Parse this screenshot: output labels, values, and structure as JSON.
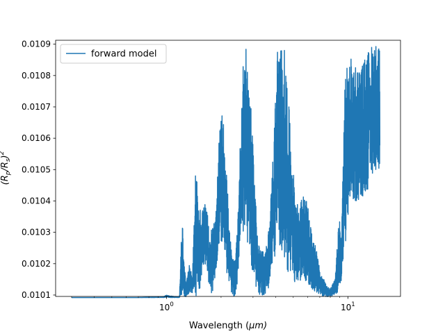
{
  "chart_data": {
    "type": "line",
    "title": "",
    "xlabel": "Wavelength ($\\mu m$)",
    "xlabel_parts": {
      "prefix": "Wavelength (",
      "symbol": "μ",
      "suffix": "m)"
    },
    "ylabel": "$(R_p/R_s)^2$",
    "xscale": "log",
    "xlim": [
      0.245,
      19.5
    ],
    "ylim": [
      1.00955,
      1.09125
    ],
    "y_scale_factor": 0.01,
    "xticks": [
      {
        "value": 1,
        "label": "10",
        "exp": "0"
      },
      {
        "value": 10,
        "label": "10",
        "exp": "1"
      }
    ],
    "yticks": [
      {
        "value": 1.01,
        "label": "0.0101"
      },
      {
        "value": 1.02,
        "label": "0.0102"
      },
      {
        "value": 1.03,
        "label": "0.0103"
      },
      {
        "value": 1.04,
        "label": "0.0104"
      },
      {
        "value": 1.05,
        "label": "0.0105"
      },
      {
        "value": 1.06,
        "label": "0.0106"
      },
      {
        "value": 1.07,
        "label": "0.0107"
      },
      {
        "value": 1.08,
        "label": "0.0108"
      },
      {
        "value": 1.09,
        "label": "0.0109"
      }
    ],
    "legend": {
      "placement": "top-left",
      "label": "forward model"
    },
    "grid": false,
    "color": "#1f77b4",
    "series": [
      {
        "name": "forward model",
        "lower": [
          [
            0.3,
            1.0092
          ],
          [
            0.7,
            1.0092
          ],
          [
            0.95,
            1.0092
          ],
          [
            1.18,
            1.0092
          ],
          [
            1.22,
            1.0092
          ],
          [
            1.29,
            1.0095
          ],
          [
            1.34,
            1.0105
          ],
          [
            1.39,
            1.01
          ],
          [
            1.45,
            1.0092
          ],
          [
            1.52,
            1.0108
          ],
          [
            1.58,
            1.0188
          ],
          [
            1.62,
            1.0205
          ],
          [
            1.67,
            1.0175
          ],
          [
            1.73,
            1.0115
          ],
          [
            1.78,
            1.0098
          ],
          [
            1.84,
            1.0135
          ],
          [
            1.93,
            1.024
          ],
          [
            2.0,
            1.027
          ],
          [
            2.07,
            1.023
          ],
          [
            2.13,
            1.0185
          ],
          [
            2.2,
            1.0135
          ],
          [
            2.3,
            1.01
          ],
          [
            2.38,
            1.0095
          ],
          [
            2.46,
            1.0135
          ],
          [
            2.55,
            1.0235
          ],
          [
            2.65,
            1.03
          ],
          [
            2.72,
            1.029
          ],
          [
            2.82,
            1.025
          ],
          [
            2.95,
            1.0185
          ],
          [
            3.1,
            1.013
          ],
          [
            3.25,
            1.01
          ],
          [
            3.4,
            1.0098
          ],
          [
            3.6,
            1.011
          ],
          [
            3.75,
            1.0148
          ],
          [
            3.95,
            1.0215
          ],
          [
            4.15,
            1.0265
          ],
          [
            4.35,
            1.024
          ],
          [
            4.5,
            1.02
          ],
          [
            4.75,
            1.015
          ],
          [
            5.0,
            1.0128
          ],
          [
            5.3,
            1.014
          ],
          [
            5.7,
            1.0155
          ],
          [
            6.1,
            1.013
          ],
          [
            6.6,
            1.011
          ],
          [
            7.0,
            1.0098
          ],
          [
            7.6,
            1.0095
          ],
          [
            8.1,
            1.0095
          ],
          [
            8.7,
            1.01
          ],
          [
            9.1,
            1.012
          ],
          [
            9.4,
            1.019
          ],
          [
            9.8,
            1.0225
          ],
          [
            10.3,
            1.041
          ],
          [
            10.9,
            1.0395
          ],
          [
            11.6,
            1.04
          ],
          [
            12.3,
            1.042
          ],
          [
            13.0,
            1.044
          ],
          [
            13.7,
            1.0475
          ],
          [
            14.4,
            1.0505
          ],
          [
            15.0,
            1.05
          ]
        ],
        "upper": [
          [
            0.3,
            1.0092
          ],
          [
            0.7,
            1.0092
          ],
          [
            0.95,
            1.0094
          ],
          [
            1.0,
            1.01
          ],
          [
            1.05,
            1.0097
          ],
          [
            1.12,
            1.0095
          ],
          [
            1.18,
            1.0094
          ],
          [
            1.22,
            1.036
          ],
          [
            1.25,
            1.02
          ],
          [
            1.29,
            1.015
          ],
          [
            1.34,
            1.02
          ],
          [
            1.39,
            1.015
          ],
          [
            1.45,
            1.052
          ],
          [
            1.5,
            1.042
          ],
          [
            1.56,
            1.036
          ],
          [
            1.62,
            1.04
          ],
          [
            1.68,
            1.036
          ],
          [
            1.74,
            1.03
          ],
          [
            1.8,
            1.033
          ],
          [
            1.87,
            1.034
          ],
          [
            1.95,
            1.061
          ],
          [
            2.02,
            1.068
          ],
          [
            2.08,
            1.064
          ],
          [
            2.15,
            1.053
          ],
          [
            2.2,
            1.034
          ],
          [
            2.3,
            1.022
          ],
          [
            2.4,
            1.021
          ],
          [
            2.5,
            1.042
          ],
          [
            2.6,
            1.076
          ],
          [
            2.68,
            1.09
          ],
          [
            2.76,
            1.088
          ],
          [
            2.86,
            1.08
          ],
          [
            2.95,
            1.065
          ],
          [
            3.05,
            1.05
          ],
          [
            3.15,
            1.033
          ],
          [
            3.3,
            1.025
          ],
          [
            3.5,
            1.023
          ],
          [
            3.7,
            1.033
          ],
          [
            3.9,
            1.06
          ],
          [
            4.1,
            1.09
          ],
          [
            4.3,
            1.0905
          ],
          [
            4.5,
            1.088
          ],
          [
            4.7,
            1.073
          ],
          [
            4.9,
            1.056
          ],
          [
            5.15,
            1.041
          ],
          [
            5.4,
            1.039
          ],
          [
            5.7,
            1.042
          ],
          [
            6.0,
            1.039
          ],
          [
            6.3,
            1.03
          ],
          [
            6.6,
            1.027
          ],
          [
            7.0,
            1.018
          ],
          [
            7.5,
            1.014
          ],
          [
            8.0,
            1.012
          ],
          [
            8.5,
            1.015
          ],
          [
            9.0,
            1.037
          ],
          [
            9.2,
            1.025
          ],
          [
            9.6,
            1.082
          ],
          [
            10.0,
            1.083
          ],
          [
            10.5,
            1.086
          ],
          [
            11.2,
            1.084
          ],
          [
            11.8,
            1.082
          ],
          [
            12.4,
            1.086
          ],
          [
            13.0,
            1.088
          ],
          [
            13.6,
            1.09
          ],
          [
            14.2,
            1.0905
          ],
          [
            15.0,
            1.0905
          ]
        ]
      }
    ]
  }
}
